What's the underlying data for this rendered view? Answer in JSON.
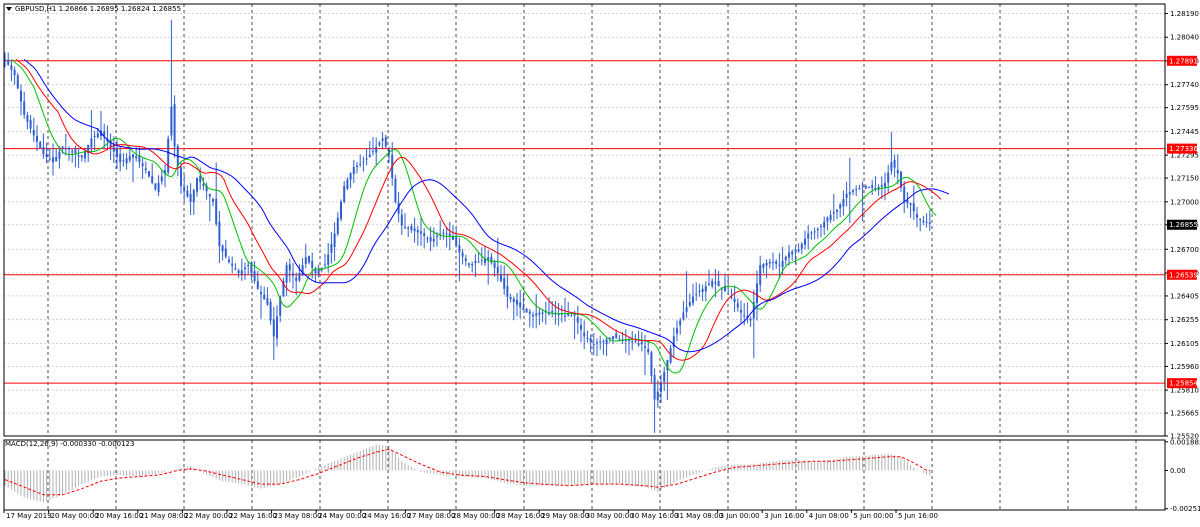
{
  "chart_data": [
    {
      "type": "candlestick",
      "title": "GBPUSD,H1  1.26866 1.26895 1.26824 1.26855",
      "symbol_menu_icon": "triangle-down-icon",
      "ylim": [
        1.2552,
        1.2825
      ],
      "y_ticks": [
        "1.28190",
        "1.28040",
        "1.27890",
        "1.27740",
        "1.27595",
        "1.27445",
        "1.27295",
        "1.27150",
        "1.27000",
        "1.26855",
        "1.26700",
        "1.26550",
        "1.26405",
        "1.26255",
        "1.26105",
        "1.25960",
        "1.25810",
        "1.25665",
        "1.25520"
      ],
      "x_labels": [
        "17 May 2019",
        "20 May 00:00",
        "20 May 16:00",
        "21 May 08:00",
        "22 May 00:00",
        "22 May 16:00",
        "23 May 08:00",
        "24 May 00:00",
        "24 May 16:00",
        "27 May 08:00",
        "28 May 00:00",
        "28 May 16:00",
        "29 May 08:00",
        "30 May 00:00",
        "30 May 16:00",
        "31 May 08:00",
        "3 Jun 00:00",
        "3 Jun 16:00",
        "4 Jun 08:00",
        "5 Jun 00:00",
        "5 Jun 16:00"
      ],
      "current_price": "1.26855",
      "current_price_value": 1.26855,
      "horizontal_levels": [
        {
          "label": "1.27891",
          "value": 1.27891
        },
        {
          "label": "1.27336",
          "value": 1.27336
        },
        {
          "label": "1.26539",
          "value": 1.26539
        },
        {
          "label": "1.25854",
          "value": 1.25854
        }
      ],
      "price_path": [
        [
          0,
          1.279
        ],
        [
          3,
          1.278
        ],
        [
          6,
          1.2755
        ],
        [
          9,
          1.2742
        ],
        [
          12,
          1.273
        ],
        [
          15,
          1.2725
        ],
        [
          18,
          1.2735
        ],
        [
          21,
          1.2732
        ],
        [
          24,
          1.2728
        ],
        [
          27,
          1.274
        ],
        [
          30,
          1.2745
        ],
        [
          33,
          1.2735
        ],
        [
          36,
          1.2725
        ],
        [
          40,
          1.273
        ],
        [
          44,
          1.272
        ],
        [
          47,
          1.2708
        ],
        [
          50,
          1.272
        ],
        [
          52,
          1.276
        ],
        [
          53,
          1.2735
        ],
        [
          55,
          1.271
        ],
        [
          58,
          1.27
        ],
        [
          60,
          1.2715
        ],
        [
          62,
          1.271
        ],
        [
          65,
          1.27
        ],
        [
          67,
          1.2672
        ],
        [
          70,
          1.2662
        ],
        [
          73,
          1.2655
        ],
        [
          76,
          1.266
        ],
        [
          79,
          1.2645
        ],
        [
          82,
          1.2635
        ],
        [
          84,
          1.2615
        ],
        [
          86,
          1.264
        ],
        [
          88,
          1.266
        ],
        [
          91,
          1.265
        ],
        [
          94,
          1.2665
        ],
        [
          97,
          1.2655
        ],
        [
          100,
          1.266
        ],
        [
          103,
          1.268
        ],
        [
          106,
          1.271
        ],
        [
          109,
          1.2722
        ],
        [
          112,
          1.2725
        ],
        [
          115,
          1.2732
        ],
        [
          118,
          1.274
        ],
        [
          120,
          1.273
        ],
        [
          122,
          1.27
        ],
        [
          124,
          1.2685
        ],
        [
          127,
          1.2682
        ],
        [
          130,
          1.268
        ],
        [
          133,
          1.2675
        ],
        [
          136,
          1.268
        ],
        [
          139,
          1.268
        ],
        [
          142,
          1.2668
        ],
        [
          145,
          1.266
        ],
        [
          148,
          1.2662
        ],
        [
          151,
          1.2665
        ],
        [
          154,
          1.2655
        ],
        [
          157,
          1.264
        ],
        [
          160,
          1.2635
        ],
        [
          163,
          1.263
        ],
        [
          166,
          1.2628
        ],
        [
          169,
          1.263
        ],
        [
          172,
          1.263
        ],
        [
          175,
          1.2628
        ],
        [
          178,
          1.2628
        ],
        [
          181,
          1.2615
        ],
        [
          184,
          1.261
        ],
        [
          187,
          1.2612
        ],
        [
          190,
          1.2615
        ],
        [
          193,
          1.2612
        ],
        [
          196,
          1.2612
        ],
        [
          199,
          1.261
        ],
        [
          201,
          1.2605
        ],
        [
          203,
          1.2575
        ],
        [
          205,
          1.2585
        ],
        [
          207,
          1.26
        ],
        [
          209,
          1.2615
        ],
        [
          212,
          1.263
        ],
        [
          215,
          1.264
        ],
        [
          218,
          1.2645
        ],
        [
          221,
          1.265
        ],
        [
          224,
          1.2645
        ],
        [
          227,
          1.264
        ],
        [
          230,
          1.263
        ],
        [
          233,
          1.2625
        ],
        [
          236,
          1.266
        ],
        [
          239,
          1.2662
        ],
        [
          242,
          1.266
        ],
        [
          245,
          1.2668
        ],
        [
          248,
          1.267
        ],
        [
          251,
          1.268
        ],
        [
          254,
          1.2682
        ],
        [
          257,
          1.269
        ],
        [
          260,
          1.2695
        ],
        [
          263,
          1.2705
        ],
        [
          266,
          1.2708
        ],
        [
          269,
          1.271
        ],
        [
          272,
          1.2708
        ],
        [
          275,
          1.2712
        ],
        [
          277,
          1.2725
        ],
        [
          279,
          1.2718
        ],
        [
          281,
          1.27
        ],
        [
          283,
          1.2698
        ],
        [
          285,
          1.269
        ],
        [
          287,
          1.2688
        ],
        [
          289,
          1.2686
        ]
      ],
      "moving_averages": [
        {
          "color": "#00c000",
          "period_bars": 8
        },
        {
          "color": "#ff0000",
          "period_bars": 14
        },
        {
          "color": "#0000ff",
          "period_bars": 24
        }
      ],
      "grid": true,
      "grid_style": "dotted",
      "colors": {
        "candles": "#2f5fd0",
        "levels": "#ff0000",
        "price_label_bg": "#000000",
        "level_label_bg": "#ff0000",
        "vertical_grid": "#222222"
      }
    },
    {
      "type": "macd",
      "title": "MACD(12,26,9) -0.000330 -0.000123",
      "ylim": [
        -0.0026,
        0.002
      ],
      "y_ticks": [
        {
          "label": "0.001882",
          "value": 0.001882
        },
        {
          "label": "0.00",
          "value": 0.0
        },
        {
          "label": "-0.002516",
          "value": -0.002516
        }
      ],
      "histogram_path": [
        [
          0,
          -0.001
        ],
        [
          6,
          -0.0018
        ],
        [
          12,
          -0.0021
        ],
        [
          18,
          -0.0016
        ],
        [
          24,
          -0.0009
        ],
        [
          30,
          -0.0004
        ],
        [
          36,
          -0.0003
        ],
        [
          42,
          -0.0004
        ],
        [
          48,
          -0.0002
        ],
        [
          54,
          0.0001
        ],
        [
          58,
          0.0003
        ],
        [
          62,
          -0.0002
        ],
        [
          68,
          -0.0007
        ],
        [
          74,
          -0.0009
        ],
        [
          80,
          -0.0012
        ],
        [
          86,
          -0.0009
        ],
        [
          92,
          -0.0004
        ],
        [
          98,
          0.0002
        ],
        [
          104,
          0.0007
        ],
        [
          110,
          0.0012
        ],
        [
          116,
          0.0017
        ],
        [
          120,
          0.0016
        ],
        [
          124,
          0.0006
        ],
        [
          130,
          -0.0001
        ],
        [
          136,
          -0.0003
        ],
        [
          142,
          -0.0004
        ],
        [
          150,
          -0.0005
        ],
        [
          156,
          -0.0008
        ],
        [
          162,
          -0.001
        ],
        [
          168,
          -0.001
        ],
        [
          176,
          -0.001
        ],
        [
          184,
          -0.0009
        ],
        [
          192,
          -0.0009
        ],
        [
          200,
          -0.0011
        ],
        [
          204,
          -0.0014
        ],
        [
          210,
          -0.0007
        ],
        [
          216,
          -0.0002
        ],
        [
          222,
          0.0002
        ],
        [
          228,
          0.0004
        ],
        [
          234,
          0.0004
        ],
        [
          240,
          0.0006
        ],
        [
          246,
          0.0007
        ],
        [
          252,
          0.0006
        ],
        [
          258,
          0.0007
        ],
        [
          264,
          0.0009
        ],
        [
          270,
          0.001
        ],
        [
          276,
          0.0011
        ],
        [
          280,
          0.0009
        ],
        [
          284,
          0.0002
        ],
        [
          288,
          -0.0003
        ]
      ],
      "signal_path": [
        [
          0,
          -0.0006
        ],
        [
          6,
          -0.0011
        ],
        [
          12,
          -0.0016
        ],
        [
          18,
          -0.0016
        ],
        [
          24,
          -0.0012
        ],
        [
          30,
          -0.0007
        ],
        [
          36,
          -0.0005
        ],
        [
          42,
          -0.0004
        ],
        [
          48,
          -0.0003
        ],
        [
          54,
          0.0
        ],
        [
          58,
          0.0001
        ],
        [
          62,
          0.0
        ],
        [
          68,
          -0.0003
        ],
        [
          74,
          -0.0006
        ],
        [
          80,
          -0.0009
        ],
        [
          86,
          -0.0009
        ],
        [
          92,
          -0.0006
        ],
        [
          98,
          -0.0002
        ],
        [
          104,
          0.0003
        ],
        [
          110,
          0.0008
        ],
        [
          116,
          0.0012
        ],
        [
          120,
          0.0014
        ],
        [
          124,
          0.001
        ],
        [
          130,
          0.0004
        ],
        [
          136,
          -0.0001
        ],
        [
          142,
          -0.0003
        ],
        [
          150,
          -0.0004
        ],
        [
          156,
          -0.0006
        ],
        [
          162,
          -0.0008
        ],
        [
          168,
          -0.0009
        ],
        [
          176,
          -0.001
        ],
        [
          184,
          -0.0009
        ],
        [
          192,
          -0.0009
        ],
        [
          200,
          -0.001
        ],
        [
          204,
          -0.0011
        ],
        [
          210,
          -0.0009
        ],
        [
          216,
          -0.0005
        ],
        [
          222,
          -0.0001
        ],
        [
          228,
          0.0002
        ],
        [
          234,
          0.0003
        ],
        [
          240,
          0.0004
        ],
        [
          246,
          0.0005
        ],
        [
          252,
          0.0006
        ],
        [
          258,
          0.0006
        ],
        [
          264,
          0.0007
        ],
        [
          270,
          0.0008
        ],
        [
          276,
          0.0009
        ],
        [
          280,
          0.0009
        ],
        [
          284,
          0.0005
        ],
        [
          288,
          0.0
        ]
      ],
      "colors": {
        "histogram": "#b0b0b0",
        "signal": "#ff0000"
      }
    }
  ]
}
